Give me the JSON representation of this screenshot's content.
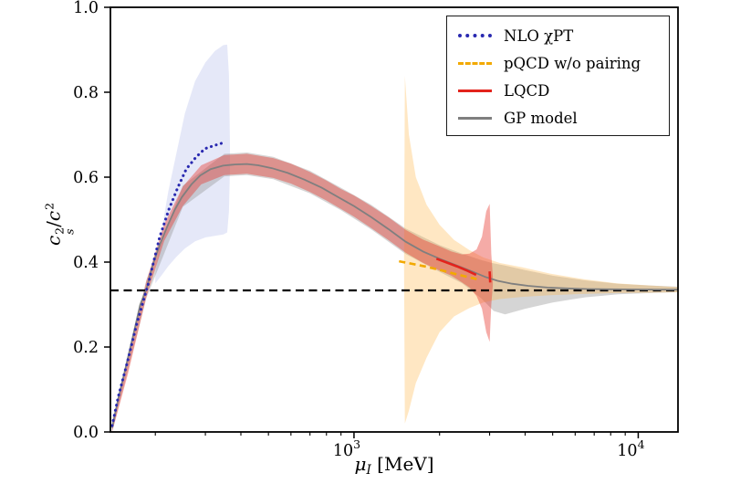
{
  "figure": {
    "background": "#ffffff"
  },
  "chart_data": {
    "type": "line",
    "title": "",
    "xscale": "log",
    "xlim": [
      139,
      13800
    ],
    "ylim": [
      0.0,
      1.0
    ],
    "grid": false,
    "xlabel": {
      "symbol": "μ",
      "subscript": "I",
      "unit": "[MeV]"
    },
    "ylabel": {
      "numerator_base": "c",
      "numerator_sup": "2",
      "numerator_sub": "s",
      "divider": "/",
      "denominator_base": "c",
      "denominator_sup": "2"
    },
    "yticks": [
      {
        "v": 0.0,
        "label": "0.0"
      },
      {
        "v": 0.2,
        "label": "0.2"
      },
      {
        "v": 0.4,
        "label": "0.4"
      },
      {
        "v": 0.6,
        "label": "0.6"
      },
      {
        "v": 0.8,
        "label": "0.8"
      },
      {
        "v": 1.0,
        "label": "1.0"
      }
    ],
    "xticks_major": [
      {
        "v": 1000,
        "base": "10",
        "exp": "3"
      },
      {
        "v": 10000,
        "base": "10",
        "exp": "4"
      }
    ],
    "xticks_minor": [
      200,
      300,
      400,
      500,
      600,
      700,
      800,
      900,
      2000,
      3000,
      4000,
      5000,
      6000,
      7000,
      8000,
      9000
    ],
    "reference_line": {
      "y": 0.3333,
      "color": "#000000",
      "style": "dashed"
    },
    "bands": [
      {
        "name": "nlo-chipt-uncertainty-band",
        "color": "#aeb8e8",
        "opacity": 0.32,
        "points": [
          [
            200,
            0.35,
            0.37
          ],
          [
            210,
            0.368,
            0.47
          ],
          [
            222,
            0.39,
            0.565
          ],
          [
            237,
            0.412,
            0.655
          ],
          [
            254,
            0.432,
            0.75
          ],
          [
            276,
            0.449,
            0.826
          ],
          [
            300,
            0.458,
            0.87
          ],
          [
            324,
            0.462,
            0.897
          ],
          [
            347,
            0.465,
            0.911
          ],
          [
            358,
            0.47,
            0.912
          ],
          [
            363,
            0.52,
            0.84
          ],
          [
            366,
            0.62,
            0.68
          ]
        ]
      },
      {
        "name": "gp-model-uncertainty-band",
        "color": "#909090",
        "opacity": 0.38,
        "points": [
          [
            141,
            0.0,
            0.025
          ],
          [
            186,
            0.315,
            0.358
          ],
          [
            250,
            0.53,
            0.58
          ],
          [
            350,
            0.602,
            0.655
          ],
          [
            420,
            0.605,
            0.658
          ],
          [
            520,
            0.595,
            0.648
          ],
          [
            700,
            0.562,
            0.615
          ],
          [
            900,
            0.522,
            0.575
          ],
          [
            1150,
            0.477,
            0.535
          ],
          [
            1520,
            0.419,
            0.479
          ],
          [
            2000,
            0.377,
            0.44
          ],
          [
            2400,
            0.35,
            0.42
          ],
          [
            2800,
            0.315,
            0.405
          ],
          [
            3100,
            0.285,
            0.397
          ],
          [
            3400,
            0.277,
            0.392
          ],
          [
            4000,
            0.29,
            0.381
          ],
          [
            5000,
            0.305,
            0.368
          ],
          [
            6500,
            0.317,
            0.357
          ],
          [
            8500,
            0.324,
            0.349
          ],
          [
            11000,
            0.327,
            0.345
          ],
          [
            13800,
            0.329,
            0.342
          ]
        ]
      },
      {
        "name": "pqcd-uncertainty-band",
        "color": "#ffb545",
        "opacity": 0.32,
        "points": [
          [
            1500,
            0.39,
            0.4
          ],
          [
            1510,
            0.02,
            0.838
          ],
          [
            1560,
            0.05,
            0.7
          ],
          [
            1650,
            0.115,
            0.6
          ],
          [
            1800,
            0.175,
            0.535
          ],
          [
            2000,
            0.235,
            0.488
          ],
          [
            2250,
            0.272,
            0.452
          ],
          [
            2550,
            0.292,
            0.428
          ],
          [
            2850,
            0.305,
            0.411
          ],
          [
            3250,
            0.313,
            0.398
          ],
          [
            3900,
            0.318,
            0.388
          ],
          [
            4900,
            0.322,
            0.373
          ],
          [
            6400,
            0.325,
            0.36
          ],
          [
            8400,
            0.327,
            0.35
          ],
          [
            11000,
            0.328,
            0.345
          ],
          [
            13800,
            0.329,
            0.341
          ]
        ]
      },
      {
        "name": "lqcd-uncertainty-band",
        "color": "#e8382e",
        "opacity": 0.42,
        "points": [
          [
            141,
            0.0,
            0.022
          ],
          [
            160,
            0.135,
            0.168
          ],
          [
            186,
            0.318,
            0.355
          ],
          [
            215,
            0.45,
            0.49
          ],
          [
            250,
            0.532,
            0.578
          ],
          [
            290,
            0.583,
            0.628
          ],
          [
            350,
            0.605,
            0.652
          ],
          [
            420,
            0.608,
            0.655
          ],
          [
            520,
            0.598,
            0.645
          ],
          [
            600,
            0.585,
            0.632
          ],
          [
            700,
            0.565,
            0.612
          ],
          [
            800,
            0.545,
            0.592
          ],
          [
            900,
            0.525,
            0.572
          ],
          [
            1000,
            0.507,
            0.557
          ],
          [
            1150,
            0.48,
            0.532
          ],
          [
            1320,
            0.452,
            0.506
          ],
          [
            1520,
            0.422,
            0.476
          ],
          [
            1750,
            0.398,
            0.453
          ],
          [
            2000,
            0.38,
            0.437
          ],
          [
            2200,
            0.368,
            0.425
          ],
          [
            2400,
            0.352,
            0.418
          ],
          [
            2550,
            0.34,
            0.42
          ],
          [
            2700,
            0.32,
            0.43
          ],
          [
            2820,
            0.29,
            0.46
          ],
          [
            2920,
            0.235,
            0.52
          ],
          [
            3000,
            0.212,
            0.537
          ],
          [
            3040,
            0.3,
            0.42
          ],
          [
            3080,
            0.345,
            0.365
          ]
        ]
      }
    ],
    "series": [
      {
        "name": "gp-model-line",
        "label": "GP model",
        "color": "#7f7f7f",
        "style": "solid",
        "width": 1.8,
        "segments": [
          [
            [
              141,
              0.01
            ],
            [
              148,
              0.077
            ],
            [
              157,
              0.15
            ],
            [
              167,
              0.226
            ],
            [
              177,
              0.3
            ],
            [
              186,
              0.336
            ],
            [
              196,
              0.394
            ],
            [
              208,
              0.443
            ],
            [
              221,
              0.486
            ],
            [
              234,
              0.523
            ],
            [
              248,
              0.553
            ],
            [
              268,
              0.583
            ],
            [
              288,
              0.604
            ],
            [
              313,
              0.619
            ],
            [
              346,
              0.627
            ],
            [
              381,
              0.63
            ],
            [
              420,
              0.631
            ],
            [
              460,
              0.628
            ],
            [
              515,
              0.621
            ],
            [
              585,
              0.61
            ],
            [
              670,
              0.594
            ],
            [
              770,
              0.575
            ],
            [
              880,
              0.553
            ],
            [
              1000,
              0.532
            ],
            [
              1150,
              0.506
            ],
            [
              1320,
              0.478
            ],
            [
              1520,
              0.448
            ],
            [
              1750,
              0.425
            ],
            [
              2000,
              0.408
            ],
            [
              2300,
              0.392
            ],
            [
              2600,
              0.378
            ],
            [
              2900,
              0.365
            ],
            [
              3200,
              0.356
            ],
            [
              3600,
              0.349
            ],
            [
              4100,
              0.344
            ],
            [
              4800,
              0.34
            ],
            [
              5600,
              0.338
            ],
            [
              6600,
              0.3365
            ],
            [
              8000,
              0.336
            ],
            [
              10000,
              0.3355
            ],
            [
              12000,
              0.335
            ],
            [
              13800,
              0.335
            ]
          ]
        ]
      },
      {
        "name": "nlo-chipt-line",
        "label": "NLO χPT",
        "color": "#2929b0",
        "style": "dotted",
        "width": 3.1,
        "segments": [
          [
            [
              141,
              0.015
            ],
            [
              148,
              0.082
            ],
            [
              160,
              0.168
            ],
            [
              172,
              0.254
            ],
            [
              189,
              0.35
            ],
            [
              207,
              0.458
            ],
            [
              223,
              0.523
            ],
            [
              240,
              0.576
            ],
            [
              257,
              0.619
            ],
            [
              278,
              0.647
            ],
            [
              299,
              0.667
            ],
            [
              324,
              0.675
            ],
            [
              343,
              0.68
            ]
          ]
        ]
      },
      {
        "name": "pqcd-line",
        "label": "pQCD w/o pairing",
        "color": "#f2a900",
        "style": "dashed",
        "width": 2.6,
        "segments": [
          [
            [
              1440,
              0.402
            ],
            [
              1600,
              0.396
            ],
            [
              1800,
              0.389
            ],
            [
              2050,
              0.38
            ],
            [
              2300,
              0.371
            ],
            [
              2550,
              0.364
            ],
            [
              2700,
              0.36
            ]
          ]
        ]
      },
      {
        "name": "lqcd-line",
        "label": "LQCD",
        "color": "#e3231c",
        "style": "solid",
        "width": 2.6,
        "segments": [
          [
            [
              1950,
              0.408
            ],
            [
              2100,
              0.4
            ],
            [
              2300,
              0.39
            ],
            [
              2500,
              0.38
            ],
            [
              2690,
              0.37
            ]
          ],
          [
            [
              3000,
              0.378
            ],
            [
              3015,
              0.352
            ]
          ]
        ]
      }
    ],
    "legend": {
      "position": "upper right",
      "entries": [
        {
          "label": "NLO χPT",
          "color": "#2929b0",
          "style": "dotted"
        },
        {
          "label": "pQCD w/o pairing",
          "color": "#f2a900",
          "style": "dashed"
        },
        {
          "label": "LQCD",
          "color": "#e3231c",
          "style": "solid"
        },
        {
          "label": "GP model",
          "color": "#7f7f7f",
          "style": "solid"
        }
      ]
    }
  }
}
